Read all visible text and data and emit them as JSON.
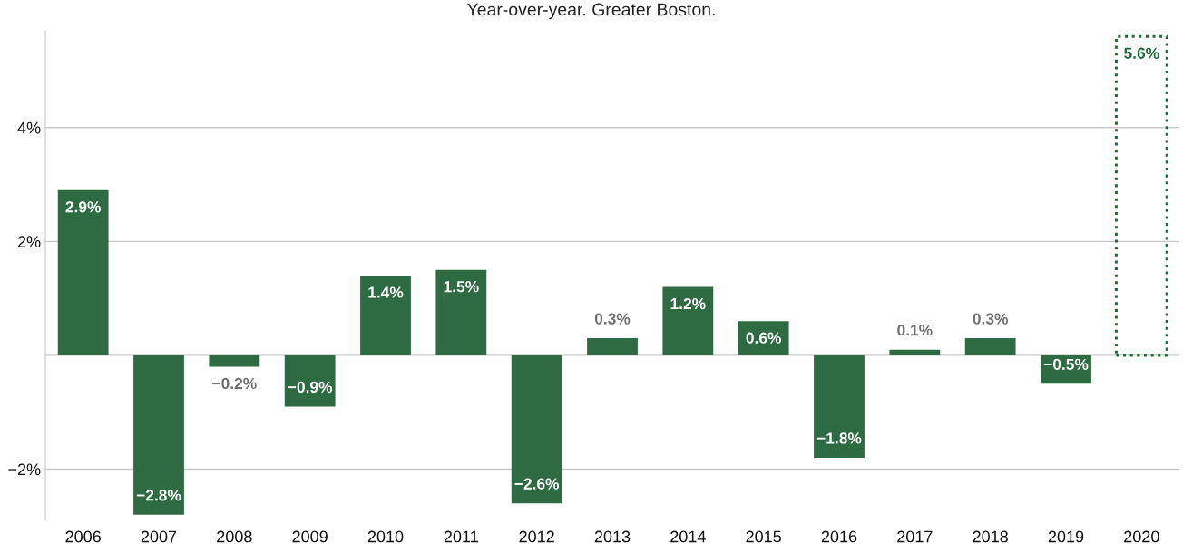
{
  "chart_data": {
    "type": "bar",
    "subtitle": "Year-over-year. Greater Boston.",
    "categories": [
      "2006",
      "2007",
      "2008",
      "2009",
      "2010",
      "2011",
      "2012",
      "2013",
      "2014",
      "2015",
      "2016",
      "2017",
      "2018",
      "2019",
      "2020"
    ],
    "series": [
      {
        "color": "#2e6b42",
        "values": [
          2.9,
          -2.8,
          -0.2,
          -0.9,
          1.4,
          1.5,
          -2.6,
          0.3,
          1.2,
          0.6,
          -1.8,
          0.1,
          0.3,
          -0.5,
          null
        ],
        "value_labels": [
          "2.9%",
          "−2.8%",
          "−0.2%",
          "−0.9%",
          "1.4%",
          "1.5%",
          "−2.6%",
          "0.3%",
          "1.2%",
          "0.6%",
          "−1.8%",
          "0.1%",
          "0.3%",
          "−0.5%",
          null
        ]
      },
      {
        "color": "#1f6b3a",
        "line_style": "dotted",
        "values": [
          null,
          null,
          null,
          null,
          null,
          null,
          null,
          null,
          null,
          null,
          null,
          null,
          null,
          null,
          5.6
        ],
        "value_labels": [
          null,
          null,
          null,
          null,
          null,
          null,
          null,
          null,
          null,
          null,
          null,
          null,
          null,
          null,
          "5.6%"
        ]
      }
    ],
    "ylim": [
      -2.9,
      5.7
    ],
    "yticks": [
      {
        "value": -2,
        "label": "−2%"
      },
      {
        "value": 0,
        "label": null
      },
      {
        "value": 2,
        "label": "2%"
      },
      {
        "value": 4,
        "label": "4%"
      }
    ],
    "grid": "y",
    "legend": false
  }
}
